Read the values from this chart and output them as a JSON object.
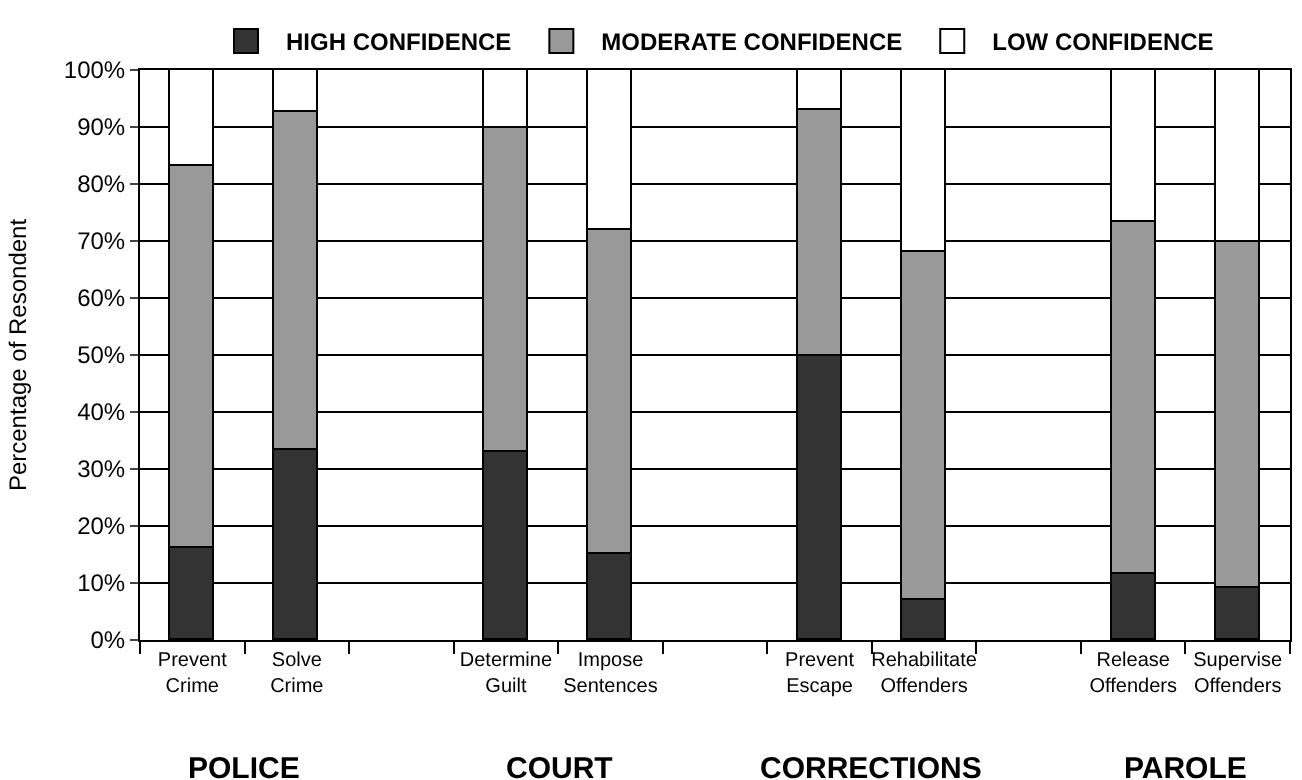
{
  "chart_data": {
    "type": "bar",
    "stacked": true,
    "ylabel": "Percentage of Resondent",
    "categories": [
      "Prevent Crime",
      "Solve Crime",
      null,
      "Determine Guilt",
      "Impose Sentences",
      null,
      "Prevent Escape",
      "Rehabilitate Offenders",
      null,
      "Release Offenders",
      "Supervise Offenders"
    ],
    "series": [
      {
        "name": "HIGH CONFIDENCE",
        "color": "#333333",
        "values": [
          16,
          33.5,
          null,
          33,
          15,
          null,
          50,
          7,
          null,
          11.5,
          9
        ]
      },
      {
        "name": "MODERATE CONFIDENCE",
        "color": "#999999",
        "values": [
          67,
          59,
          null,
          57,
          57,
          null,
          43,
          61,
          null,
          62,
          61
        ]
      },
      {
        "name": "LOW CONFIDENCE",
        "color": "#ffffff",
        "values": [
          17,
          7.5,
          null,
          10,
          28,
          null,
          7,
          32,
          null,
          26.5,
          30
        ]
      }
    ],
    "ylim": [
      0,
      100
    ],
    "yticks": [
      {
        "value": 0,
        "label": "0%"
      },
      {
        "value": 10,
        "label": "10%"
      },
      {
        "value": 20,
        "label": "20%"
      },
      {
        "value": 30,
        "label": "30%"
      },
      {
        "value": 40,
        "label": "40%"
      },
      {
        "value": 50,
        "label": "50%"
      },
      {
        "value": 60,
        "label": "60%"
      },
      {
        "value": 70,
        "label": "70%"
      },
      {
        "value": 80,
        "label": "80%"
      },
      {
        "value": 90,
        "label": "90%"
      },
      {
        "value": 100,
        "label": "100%"
      }
    ],
    "grid": "y",
    "legend": "top",
    "annotations": [
      "POLICE",
      "COURT",
      "CORRECTIONS",
      "PAROLE"
    ]
  }
}
